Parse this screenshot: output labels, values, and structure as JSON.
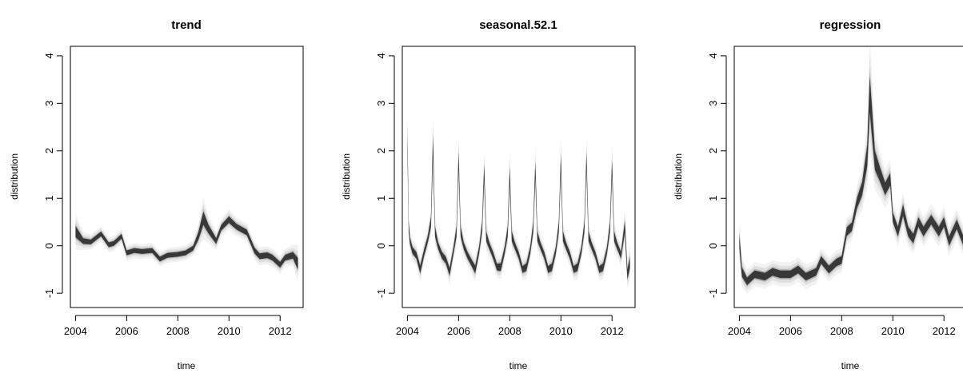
{
  "chart_data": [
    {
      "type": "line",
      "title": "trend",
      "xlabel": "time",
      "ylabel": "distribution",
      "xlim": [
        2003.8,
        2012.9
      ],
      "ylim": [
        -1.3,
        4.2
      ],
      "xticks": [
        "2004",
        "2006",
        "2008",
        "2010",
        "2012"
      ],
      "yticks": [
        "-1",
        "0",
        "1",
        "2",
        "3",
        "4"
      ],
      "series": [
        {
          "style": "posterior-density-band",
          "x": [
            2004.0,
            2004.3,
            2004.6,
            2005.0,
            2005.3,
            2005.5,
            2005.8,
            2006.0,
            2006.3,
            2006.6,
            2007.0,
            2007.3,
            2007.6,
            2008.0,
            2008.3,
            2008.6,
            2008.8,
            2009.0,
            2009.2,
            2009.5,
            2009.7,
            2010.0,
            2010.3,
            2010.7,
            2011.0,
            2011.2,
            2011.5,
            2011.7,
            2012.0,
            2012.2,
            2012.5,
            2012.7
          ],
          "values": [
            0.3,
            0.1,
            0.08,
            0.25,
            0.02,
            0.05,
            0.2,
            -0.15,
            -0.1,
            -0.12,
            -0.1,
            -0.28,
            -0.2,
            -0.18,
            -0.15,
            -0.05,
            0.2,
            0.58,
            0.35,
            0.1,
            0.38,
            0.55,
            0.4,
            0.28,
            -0.1,
            -0.22,
            -0.2,
            -0.25,
            -0.4,
            -0.25,
            -0.2,
            -0.38
          ],
          "spread": [
            0.12,
            0.06,
            0.05,
            0.05,
            0.05,
            0.05,
            0.05,
            0.05,
            0.05,
            0.05,
            0.05,
            0.05,
            0.05,
            0.05,
            0.05,
            0.05,
            0.08,
            0.14,
            0.09,
            0.06,
            0.06,
            0.07,
            0.06,
            0.06,
            0.06,
            0.06,
            0.06,
            0.06,
            0.06,
            0.06,
            0.07,
            0.12
          ]
        }
      ]
    },
    {
      "type": "line",
      "title": "seasonal.52.1",
      "xlabel": "time",
      "ylabel": "distribution",
      "xlim": [
        2003.8,
        2012.9
      ],
      "ylim": [
        -1.3,
        4.2
      ],
      "xticks": [
        "2004",
        "2006",
        "2008",
        "2010",
        "2012"
      ],
      "yticks": [
        "-1",
        "0",
        "1",
        "2",
        "3",
        "4"
      ],
      "series": [
        {
          "style": "posterior-density-band",
          "x": [
            2004.0,
            2004.05,
            2004.1,
            2004.2,
            2004.35,
            2004.5,
            2004.65,
            2004.8,
            2004.92,
            2005.0,
            2005.08,
            2005.2,
            2005.35,
            2005.5,
            2005.65,
            2005.8,
            2005.92,
            2006.0,
            2006.08,
            2006.2,
            2006.35,
            2006.5,
            2006.65,
            2006.8,
            2006.92,
            2007.0,
            2007.08,
            2007.2,
            2007.35,
            2007.5,
            2007.65,
            2007.8,
            2007.92,
            2008.0,
            2008.08,
            2008.2,
            2008.35,
            2008.5,
            2008.65,
            2008.8,
            2008.92,
            2009.0,
            2009.08,
            2009.2,
            2009.35,
            2009.5,
            2009.65,
            2009.8,
            2009.92,
            2010.0,
            2010.08,
            2010.2,
            2010.35,
            2010.5,
            2010.65,
            2010.8,
            2010.92,
            2011.0,
            2011.08,
            2011.2,
            2011.35,
            2011.5,
            2011.65,
            2011.8,
            2011.92,
            2012.0,
            2012.08,
            2012.2,
            2012.35,
            2012.5,
            2012.6,
            2012.7
          ],
          "values": [
            2.2,
            0.4,
            0.1,
            -0.1,
            -0.2,
            -0.5,
            -0.15,
            0.15,
            0.5,
            2.1,
            0.3,
            0.0,
            -0.2,
            -0.3,
            -0.55,
            -0.1,
            0.3,
            1.8,
            0.3,
            0.0,
            -0.2,
            -0.35,
            -0.5,
            -0.1,
            0.4,
            1.55,
            0.2,
            0.0,
            -0.2,
            -0.45,
            -0.45,
            -0.1,
            0.3,
            1.5,
            0.2,
            0.0,
            -0.2,
            -0.5,
            -0.45,
            -0.1,
            0.4,
            1.6,
            0.2,
            0.0,
            -0.2,
            -0.5,
            -0.45,
            -0.1,
            0.4,
            1.75,
            0.2,
            0.0,
            -0.2,
            -0.5,
            -0.45,
            -0.1,
            0.4,
            1.8,
            0.2,
            0.0,
            -0.2,
            -0.5,
            -0.45,
            -0.1,
            0.4,
            1.65,
            0.2,
            0.0,
            -0.2,
            0.4,
            -0.6,
            -0.35
          ],
          "spread": [
            0.22,
            0.1,
            0.07,
            0.07,
            0.07,
            0.08,
            0.07,
            0.07,
            0.1,
            0.22,
            0.1,
            0.07,
            0.07,
            0.07,
            0.08,
            0.07,
            0.1,
            0.18,
            0.1,
            0.07,
            0.07,
            0.07,
            0.08,
            0.07,
            0.1,
            0.16,
            0.1,
            0.07,
            0.07,
            0.07,
            0.08,
            0.07,
            0.1,
            0.16,
            0.1,
            0.07,
            0.07,
            0.07,
            0.08,
            0.07,
            0.1,
            0.16,
            0.1,
            0.07,
            0.07,
            0.07,
            0.08,
            0.07,
            0.1,
            0.17,
            0.1,
            0.07,
            0.07,
            0.07,
            0.08,
            0.07,
            0.1,
            0.17,
            0.1,
            0.07,
            0.07,
            0.07,
            0.08,
            0.07,
            0.1,
            0.16,
            0.1,
            0.07,
            0.07,
            0.12,
            0.1,
            0.12
          ]
        }
      ]
    },
    {
      "type": "line",
      "title": "regression",
      "xlabel": "time",
      "ylabel": "distribution",
      "xlim": [
        2003.8,
        2012.9
      ],
      "ylim": [
        -1.3,
        4.2
      ],
      "xticks": [
        "2004",
        "2006",
        "2008",
        "2010",
        "2012"
      ],
      "yticks": [
        "-1",
        "0",
        "1",
        "2",
        "3",
        "4"
      ],
      "series": [
        {
          "style": "posterior-density-band",
          "x": [
            2004.0,
            2004.1,
            2004.3,
            2004.6,
            2005.0,
            2005.3,
            2005.6,
            2006.0,
            2006.3,
            2006.6,
            2007.0,
            2007.2,
            2007.5,
            2007.8,
            2008.0,
            2008.2,
            2008.4,
            2008.6,
            2008.8,
            2009.0,
            2009.1,
            2009.3,
            2009.5,
            2009.7,
            2009.9,
            2010.0,
            2010.2,
            2010.4,
            2010.6,
            2010.8,
            2011.0,
            2011.2,
            2011.5,
            2011.8,
            2012.0,
            2012.2,
            2012.5,
            2012.8
          ],
          "values": [
            0.1,
            -0.55,
            -0.75,
            -0.6,
            -0.65,
            -0.55,
            -0.6,
            -0.6,
            -0.5,
            -0.65,
            -0.55,
            -0.3,
            -0.5,
            -0.35,
            -0.3,
            0.3,
            0.4,
            0.9,
            1.2,
            1.9,
            3.2,
            1.8,
            1.5,
            1.2,
            1.4,
            0.6,
            0.3,
            0.75,
            0.3,
            0.15,
            0.5,
            0.3,
            0.55,
            0.3,
            0.5,
            0.1,
            0.45,
            0.05
          ],
          "spread": [
            0.15,
            0.1,
            0.08,
            0.08,
            0.08,
            0.08,
            0.08,
            0.08,
            0.08,
            0.08,
            0.08,
            0.08,
            0.08,
            0.08,
            0.08,
            0.09,
            0.09,
            0.11,
            0.14,
            0.22,
            0.38,
            0.2,
            0.15,
            0.13,
            0.13,
            0.1,
            0.1,
            0.12,
            0.1,
            0.1,
            0.1,
            0.1,
            0.1,
            0.1,
            0.1,
            0.1,
            0.1,
            0.1
          ]
        }
      ]
    }
  ]
}
